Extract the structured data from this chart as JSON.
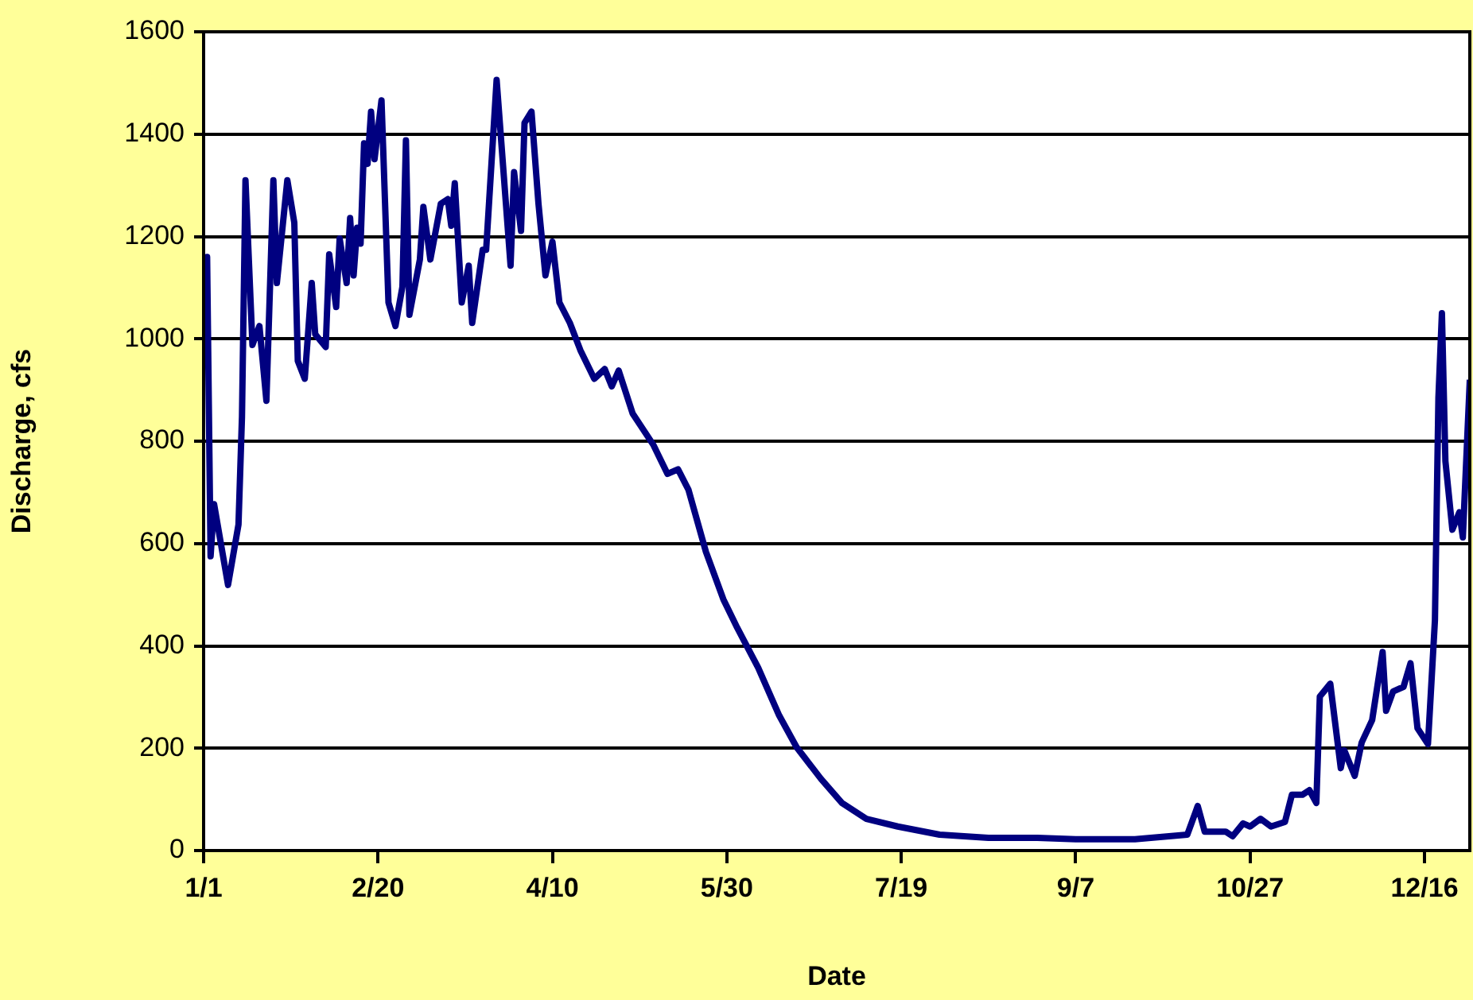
{
  "chart_data": {
    "type": "line",
    "xlabel": "Date",
    "ylabel": "Discharge, cfs",
    "x": [
      "--01-01",
      "--01-02",
      "--01-03",
      "--01-04",
      "--01-08",
      "--01-11",
      "--01-12",
      "--01-13",
      "--01-15",
      "--01-17",
      "--01-19",
      "--01-21",
      "--01-22",
      "--01-25",
      "--01-27",
      "--01-28",
      "--01-30",
      "--02-01",
      "--02-02",
      "--02-05",
      "--02-06",
      "--02-08",
      "--02-09",
      "--02-11",
      "--02-12",
      "--02-13",
      "--02-14",
      "--02-15",
      "--02-16",
      "--02-17",
      "--02-18",
      "--02-19",
      "--02-21",
      "--02-23",
      "--02-25",
      "--02-27",
      "--02-28",
      "--02-29",
      "--03-03",
      "--03-04",
      "--03-06",
      "--03-09",
      "--03-11",
      "--03-12",
      "--03-13",
      "--03-15",
      "--03-17",
      "--03-18",
      "--03-21",
      "--03-22",
      "--03-25",
      "--03-29",
      "--03-30",
      "--04-01",
      "--04-02",
      "--04-04",
      "--04-06",
      "--04-08",
      "--04-10",
      "--04-12",
      "--04-15",
      "--04-18",
      "--04-22",
      "--04-25",
      "--04-27",
      "--04-29",
      "--05-03",
      "--05-09",
      "--05-13",
      "--05-16",
      "--05-19",
      "--05-24",
      "--05-29",
      "--06-02",
      "--06-08",
      "--06-14",
      "--06-19",
      "--06-26",
      "--07-02",
      "--07-09",
      "--07-18",
      "--07-30",
      "--08-13",
      "--08-27",
      "--09-07",
      "--09-24",
      "--10-09",
      "--10-12",
      "--10-14",
      "--10-20",
      "--10-22",
      "--10-25",
      "--10-27",
      "--10-30",
      "--11-02",
      "--11-06",
      "--11-08",
      "--11-11",
      "--11-13",
      "--11-15",
      "--11-16",
      "--11-19",
      "--11-22",
      "--11-23",
      "--11-26",
      "--11-28",
      "--12-01",
      "--12-04",
      "--12-05",
      "--12-07",
      "--12-10",
      "--12-12",
      "--12-14",
      "--12-17",
      "--12-19",
      "--12-20",
      "--12-21",
      "--12-22",
      "--12-24",
      "--12-26",
      "--12-27",
      "--12-29"
    ],
    "series": [
      {
        "color": "#000080",
        "values": [
          950,
          1160,
          575,
          677,
          519,
          637,
          848,
          1310,
          988,
          1025,
          879,
          1310,
          1109,
          1310,
          1227,
          957,
          922,
          1109,
          1009,
          984,
          1165,
          1062,
          1196,
          1109,
          1236,
          1124,
          1217,
          1186,
          1382,
          1342,
          1444,
          1351,
          1466,
          1071,
          1025,
          1102,
          1388,
          1047,
          1155,
          1258,
          1155,
          1264,
          1273,
          1221,
          1304,
          1071,
          1143,
          1031,
          1174,
          1174,
          1506,
          1143,
          1326,
          1211,
          1422,
          1444,
          1264,
          1124,
          1190,
          1071,
          1031,
          978,
          922,
          941,
          907,
          938,
          854,
          792,
          736,
          745,
          705,
          584,
          491,
          435,
          357,
          264,
          202,
          140,
          93,
          62,
          47,
          31,
          25,
          25,
          22,
          22,
          31,
          87,
          37,
          37,
          28,
          53,
          47,
          62,
          47,
          56,
          109,
          109,
          118,
          93,
          301,
          326,
          161,
          196,
          146,
          211,
          255,
          388,
          273,
          311,
          320,
          366,
          239,
          208,
          450,
          885,
          1050,
          761,
          627,
          661,
          612,
          920
        ]
      }
    ],
    "xlim": [
      "--01-01",
      "--12-29"
    ],
    "xticks": [
      {
        "value": "--01-01",
        "label": "1/1"
      },
      {
        "value": "--02-20",
        "label": "2/20"
      },
      {
        "value": "--04-10",
        "label": "4/10"
      },
      {
        "value": "--05-30",
        "label": "5/30"
      },
      {
        "value": "--07-19",
        "label": "7/19"
      },
      {
        "value": "--09-07",
        "label": "9/7"
      },
      {
        "value": "--10-27",
        "label": "10/27"
      },
      {
        "value": "--12-16",
        "label": "12/16"
      }
    ],
    "ylim": [
      0,
      1600
    ],
    "yticks": [
      0,
      200,
      400,
      600,
      800,
      1000,
      1200,
      1400,
      1600
    ],
    "grid": "y",
    "legend": false,
    "marker": "none",
    "line_style": "solid"
  }
}
